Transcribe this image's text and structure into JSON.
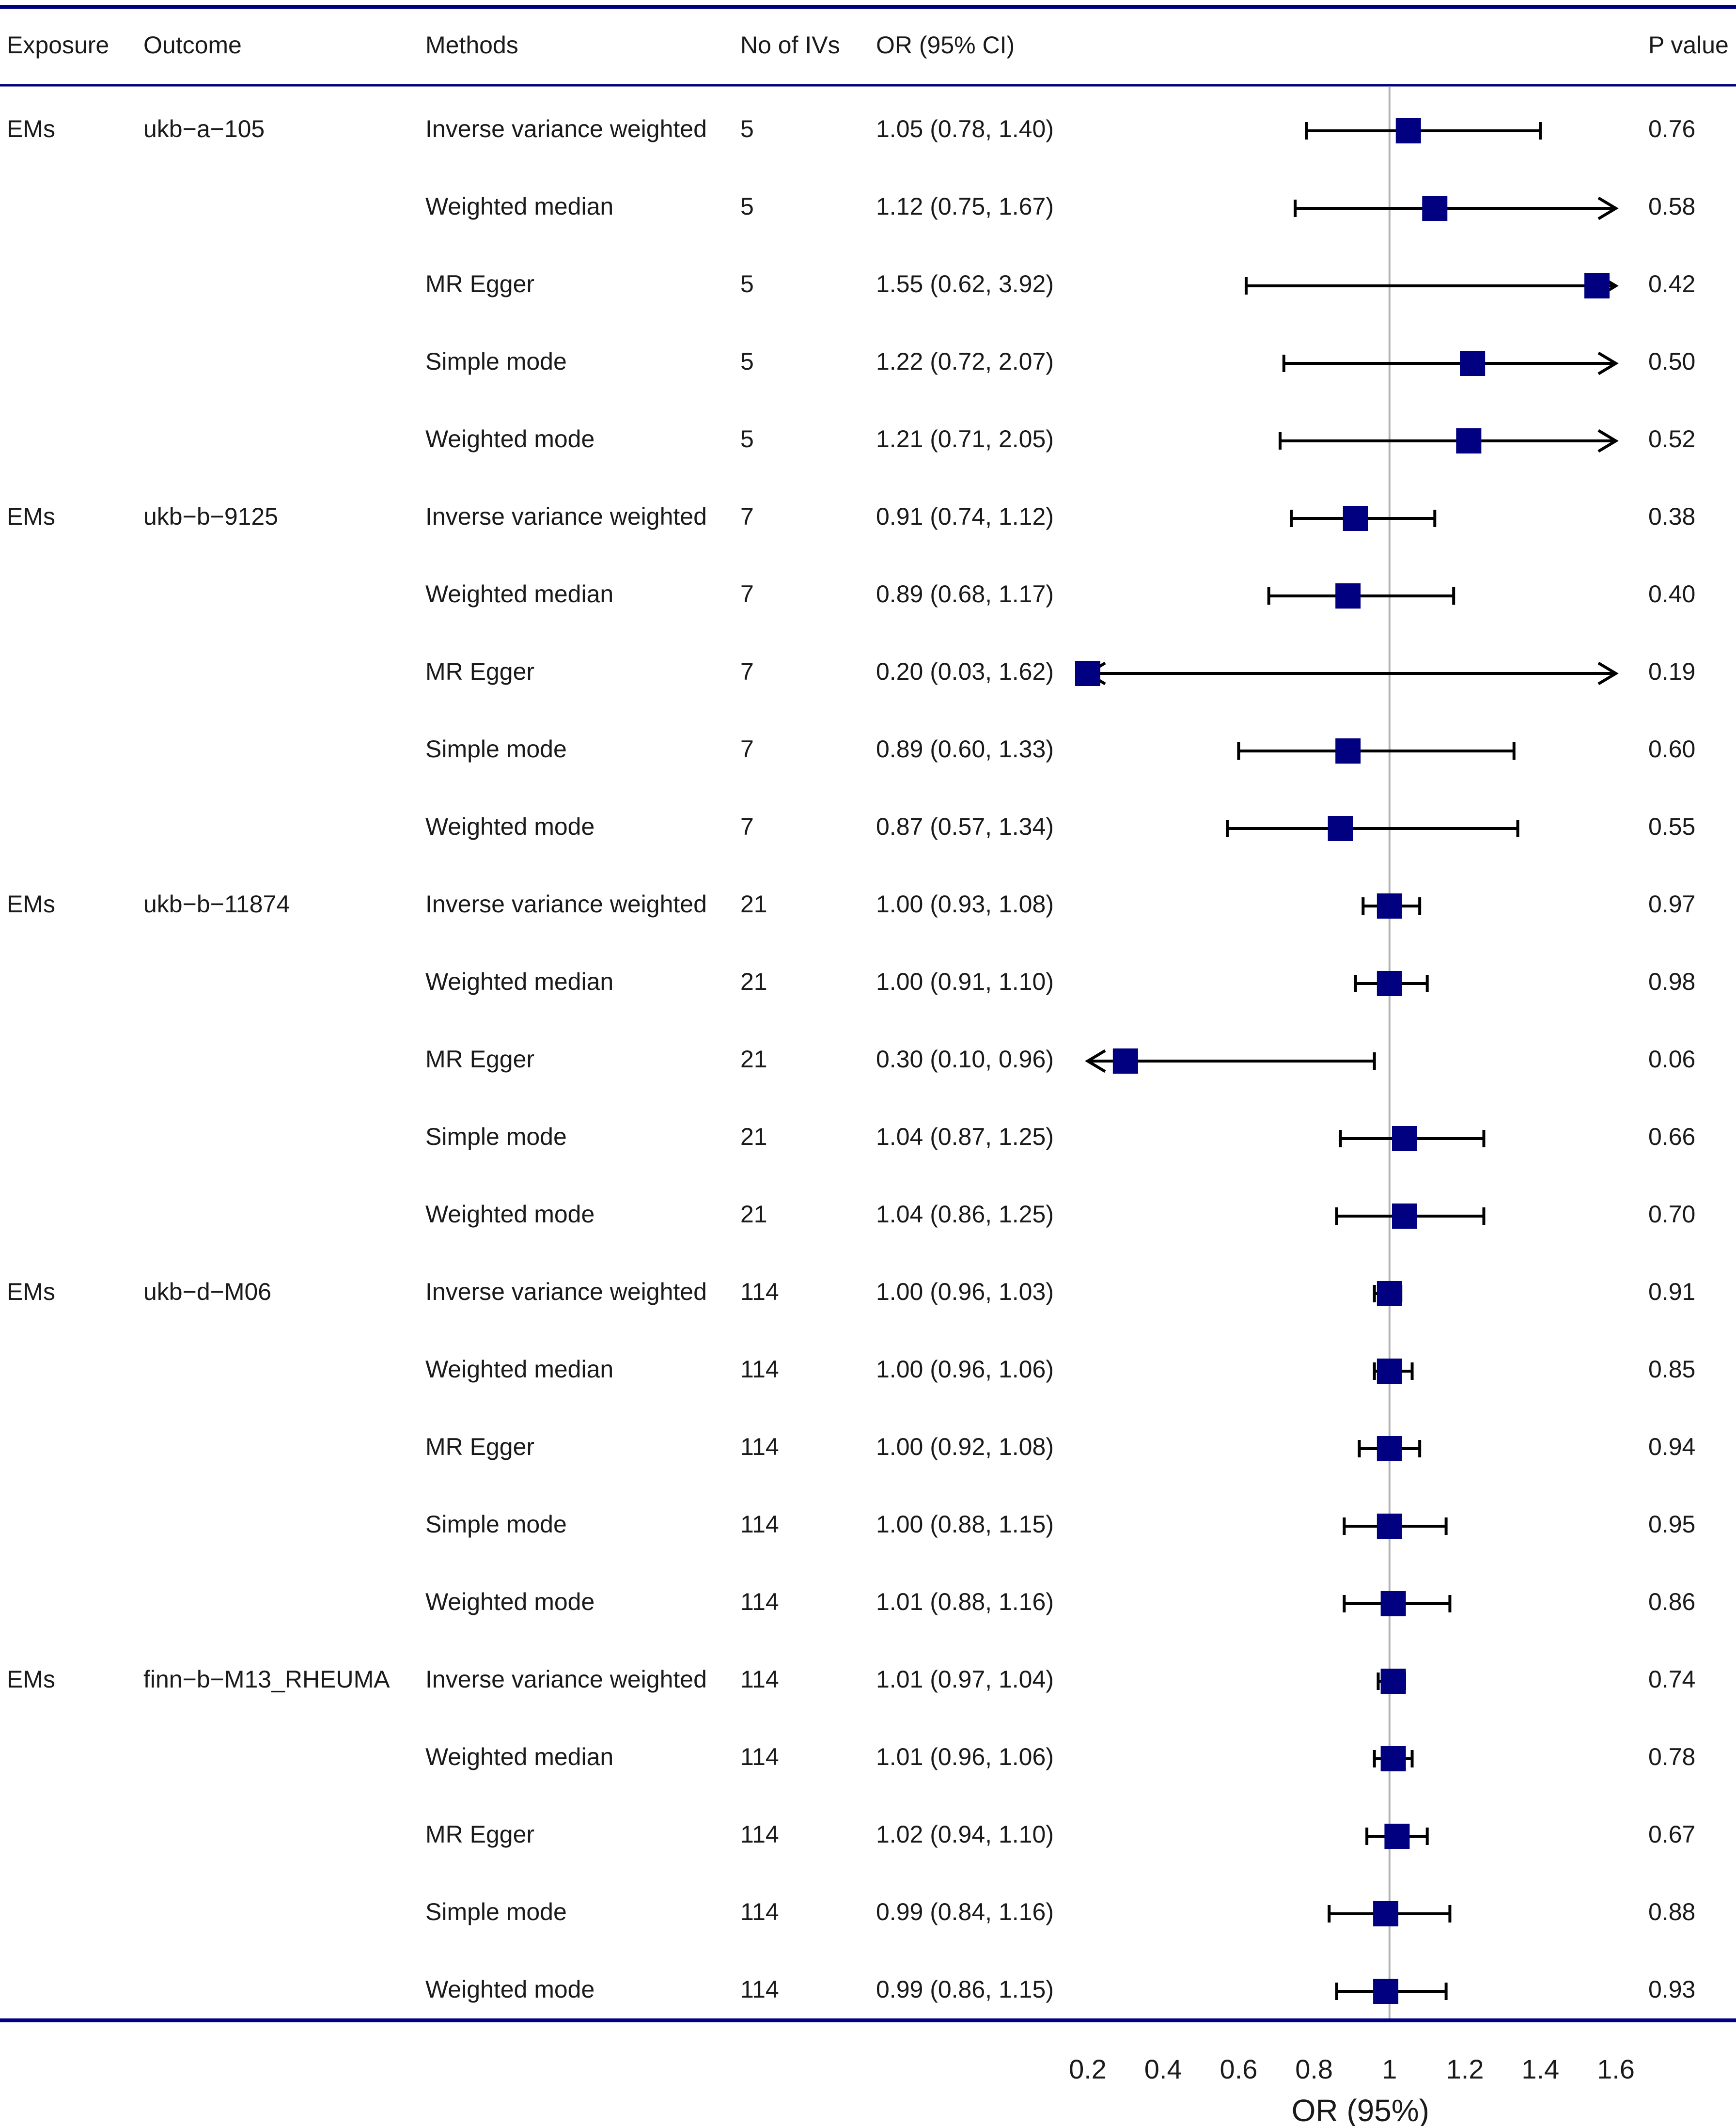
{
  "chart_data": {
    "type": "forest",
    "xlabel": "OR (95%)",
    "xlim": [
      0.2,
      1.6
    ],
    "reference_line": 1,
    "tick_values": [
      0.2,
      0.4,
      0.6,
      0.8,
      1,
      1.2,
      1.4,
      1.6
    ],
    "tick_labels": [
      "0.2",
      "0.4",
      "0.6",
      "0.8",
      "1",
      "1.2",
      "1.4",
      "1.6"
    ],
    "colors": {
      "frame": "#000080",
      "point": "#000080",
      "whisker": "#000000",
      "reference": "#b3b3b3"
    },
    "columns": [
      {
        "key": "exposure",
        "label": "Exposure"
      },
      {
        "key": "outcome",
        "label": "Outcome"
      },
      {
        "key": "method",
        "label": "Methods"
      },
      {
        "key": "n_iv",
        "label": "No of IVs"
      },
      {
        "key": "or_text",
        "label": "OR (95% CI)"
      },
      {
        "key": "p",
        "label": "P value"
      }
    ],
    "rows": [
      {
        "exposure": "EMs",
        "outcome": "ukb−a−105",
        "method": "Inverse variance weighted",
        "n_iv": "5",
        "or_text": "1.05 (0.78, 1.40)",
        "p": "0.76",
        "or": 1.05,
        "lo": 0.78,
        "hi": 1.4
      },
      {
        "exposure": "",
        "outcome": "",
        "method": "Weighted median",
        "n_iv": "5",
        "or_text": "1.12 (0.75, 1.67)",
        "p": "0.58",
        "or": 1.12,
        "lo": 0.75,
        "hi": 1.67
      },
      {
        "exposure": "",
        "outcome": "",
        "method": "MR Egger",
        "n_iv": "5",
        "or_text": "1.55 (0.62, 3.92)",
        "p": "0.42",
        "or": 1.55,
        "lo": 0.62,
        "hi": 3.92
      },
      {
        "exposure": "",
        "outcome": "",
        "method": "Simple mode",
        "n_iv": "5",
        "or_text": "1.22 (0.72, 2.07)",
        "p": "0.50",
        "or": 1.22,
        "lo": 0.72,
        "hi": 2.07
      },
      {
        "exposure": "",
        "outcome": "",
        "method": "Weighted mode",
        "n_iv": "5",
        "or_text": "1.21 (0.71, 2.05)",
        "p": "0.52",
        "or": 1.21,
        "lo": 0.71,
        "hi": 2.05
      },
      {
        "exposure": "EMs",
        "outcome": "ukb−b−9125",
        "method": "Inverse variance weighted",
        "n_iv": "7",
        "or_text": "0.91 (0.74, 1.12)",
        "p": "0.38",
        "or": 0.91,
        "lo": 0.74,
        "hi": 1.12
      },
      {
        "exposure": "",
        "outcome": "",
        "method": "Weighted median",
        "n_iv": "7",
        "or_text": "0.89 (0.68, 1.17)",
        "p": "0.40",
        "or": 0.89,
        "lo": 0.68,
        "hi": 1.17
      },
      {
        "exposure": "",
        "outcome": "",
        "method": "MR Egger",
        "n_iv": "7",
        "or_text": "0.20 (0.03, 1.62)",
        "p": "0.19",
        "or": 0.2,
        "lo": 0.03,
        "hi": 1.62
      },
      {
        "exposure": "",
        "outcome": "",
        "method": "Simple mode",
        "n_iv": "7",
        "or_text": "0.89 (0.60, 1.33)",
        "p": "0.60",
        "or": 0.89,
        "lo": 0.6,
        "hi": 1.33
      },
      {
        "exposure": "",
        "outcome": "",
        "method": "Weighted mode",
        "n_iv": "7",
        "or_text": "0.87 (0.57, 1.34)",
        "p": "0.55",
        "or": 0.87,
        "lo": 0.57,
        "hi": 1.34
      },
      {
        "exposure": "EMs",
        "outcome": "ukb−b−11874",
        "method": "Inverse variance weighted",
        "n_iv": "21",
        "or_text": "1.00 (0.93, 1.08)",
        "p": "0.97",
        "or": 1.0,
        "lo": 0.93,
        "hi": 1.08
      },
      {
        "exposure": "",
        "outcome": "",
        "method": "Weighted median",
        "n_iv": "21",
        "or_text": "1.00 (0.91, 1.10)",
        "p": "0.98",
        "or": 1.0,
        "lo": 0.91,
        "hi": 1.1
      },
      {
        "exposure": "",
        "outcome": "",
        "method": "MR Egger",
        "n_iv": "21",
        "or_text": "0.30 (0.10, 0.96)",
        "p": "0.06",
        "or": 0.3,
        "lo": 0.1,
        "hi": 0.96
      },
      {
        "exposure": "",
        "outcome": "",
        "method": "Simple mode",
        "n_iv": "21",
        "or_text": "1.04 (0.87, 1.25)",
        "p": "0.66",
        "or": 1.04,
        "lo": 0.87,
        "hi": 1.25
      },
      {
        "exposure": "",
        "outcome": "",
        "method": "Weighted mode",
        "n_iv": "21",
        "or_text": "1.04 (0.86, 1.25)",
        "p": "0.70",
        "or": 1.04,
        "lo": 0.86,
        "hi": 1.25
      },
      {
        "exposure": "EMs",
        "outcome": "ukb−d−M06",
        "method": "Inverse variance weighted",
        "n_iv": "114",
        "or_text": "1.00 (0.96, 1.03)",
        "p": "0.91",
        "or": 1.0,
        "lo": 0.96,
        "hi": 1.03
      },
      {
        "exposure": "",
        "outcome": "",
        "method": "Weighted median",
        "n_iv": "114",
        "or_text": "1.00 (0.96, 1.06)",
        "p": "0.85",
        "or": 1.0,
        "lo": 0.96,
        "hi": 1.06
      },
      {
        "exposure": "",
        "outcome": "",
        "method": "MR Egger",
        "n_iv": "114",
        "or_text": "1.00 (0.92, 1.08)",
        "p": "0.94",
        "or": 1.0,
        "lo": 0.92,
        "hi": 1.08
      },
      {
        "exposure": "",
        "outcome": "",
        "method": "Simple mode",
        "n_iv": "114",
        "or_text": "1.00 (0.88, 1.15)",
        "p": "0.95",
        "or": 1.0,
        "lo": 0.88,
        "hi": 1.15
      },
      {
        "exposure": "",
        "outcome": "",
        "method": "Weighted mode",
        "n_iv": "114",
        "or_text": "1.01 (0.88, 1.16)",
        "p": "0.86",
        "or": 1.01,
        "lo": 0.88,
        "hi": 1.16
      },
      {
        "exposure": "EMs",
        "outcome": "finn−b−M13_RHEUMA",
        "method": "Inverse variance weighted",
        "n_iv": "114",
        "or_text": "1.01 (0.97, 1.04)",
        "p": "0.74",
        "or": 1.01,
        "lo": 0.97,
        "hi": 1.04
      },
      {
        "exposure": "",
        "outcome": "",
        "method": "Weighted median",
        "n_iv": "114",
        "or_text": "1.01 (0.96, 1.06)",
        "p": "0.78",
        "or": 1.01,
        "lo": 0.96,
        "hi": 1.06
      },
      {
        "exposure": "",
        "outcome": "",
        "method": "MR Egger",
        "n_iv": "114",
        "or_text": "1.02 (0.94, 1.10)",
        "p": "0.67",
        "or": 1.02,
        "lo": 0.94,
        "hi": 1.1
      },
      {
        "exposure": "",
        "outcome": "",
        "method": "Simple mode",
        "n_iv": "114",
        "or_text": "0.99 (0.84, 1.16)",
        "p": "0.88",
        "or": 0.99,
        "lo": 0.84,
        "hi": 1.16
      },
      {
        "exposure": "",
        "outcome": "",
        "method": "Weighted mode",
        "n_iv": "114",
        "or_text": "0.99 (0.86, 1.15)",
        "p": "0.93",
        "or": 0.99,
        "lo": 0.86,
        "hi": 1.15
      }
    ]
  }
}
